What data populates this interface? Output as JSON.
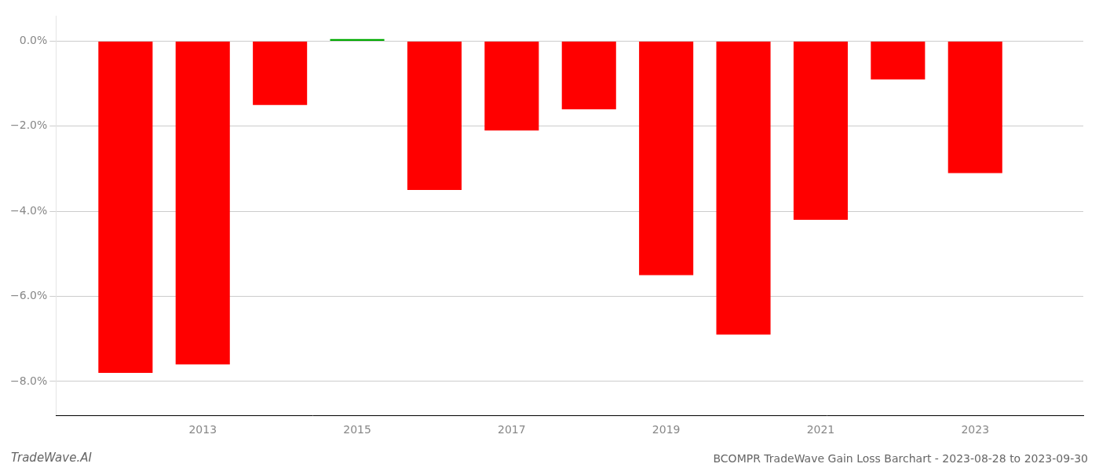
{
  "chart_data": {
    "type": "bar",
    "title": "BCOMPR TradeWave Gain Loss Barchart - 2023-08-28 to 2023-09-30",
    "annotations": [
      "TradeWave.AI"
    ],
    "x": [
      2012,
      2013,
      2014,
      2015,
      2016,
      2017,
      2018,
      2019,
      2020,
      2021,
      2022,
      2023
    ],
    "values": [
      -7.8,
      -7.6,
      -1.5,
      0.05,
      -3.5,
      -2.1,
      -1.6,
      -5.5,
      -6.9,
      -4.2,
      -0.9,
      -3.1
    ],
    "colors": [
      "#ff0000",
      "#ff0000",
      "#ff0000",
      "#00aa00",
      "#ff0000",
      "#ff0000",
      "#ff0000",
      "#ff0000",
      "#ff0000",
      "#ff0000",
      "#ff0000",
      "#ff0000"
    ],
    "xlim": [
      2011.1,
      2024.4
    ],
    "xticks": [
      2013,
      2015,
      2017,
      2019,
      2021,
      2023
    ],
    "ylim": [
      -8.8,
      0.6
    ],
    "yticks": [
      {
        "value": 0.0,
        "label": "0.0%"
      },
      {
        "value": -2.0,
        "label": "−2.0%"
      },
      {
        "value": -4.0,
        "label": "−4.0%"
      },
      {
        "value": -6.0,
        "label": "−6.0%"
      },
      {
        "value": -8.0,
        "label": "−8.0%"
      }
    ],
    "grid": "y"
  }
}
